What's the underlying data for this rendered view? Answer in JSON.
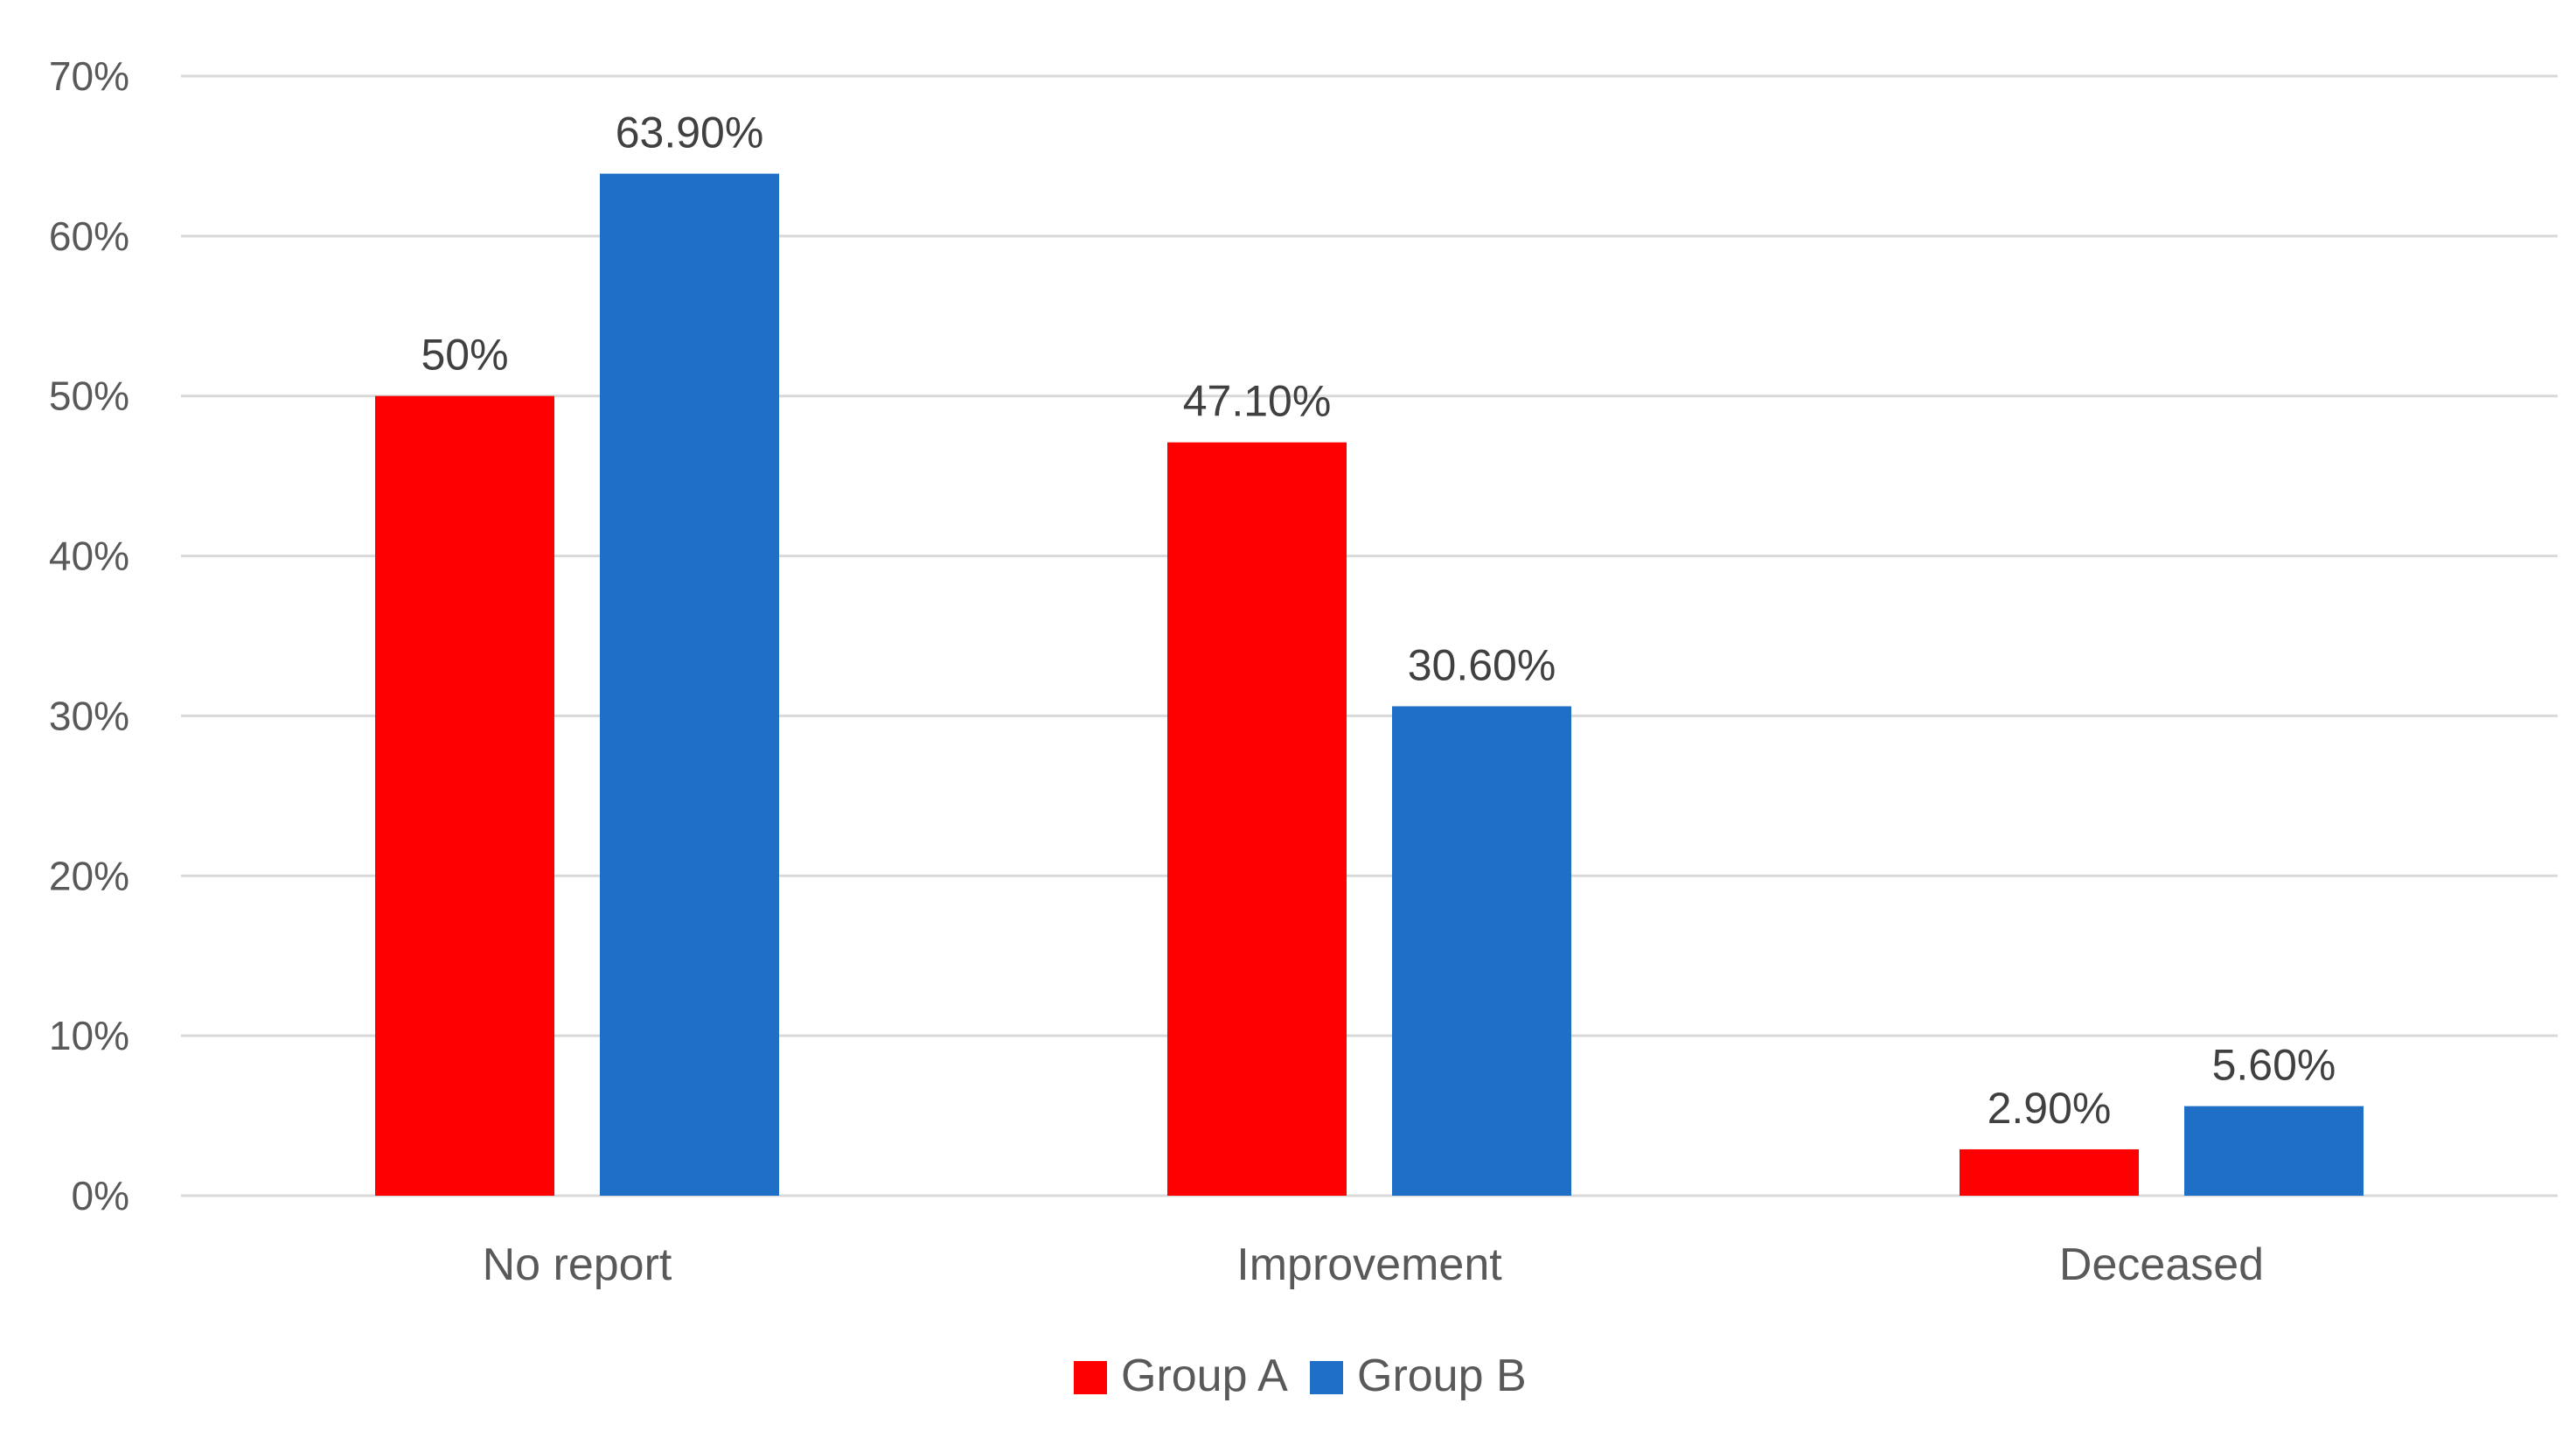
{
  "chart_data": {
    "type": "bar",
    "categories": [
      "No report",
      "Improvement",
      "Deceased"
    ],
    "series": [
      {
        "name": "Group A",
        "color": "#ff0000",
        "values": [
          50,
          47.1,
          2.9
        ],
        "labels": [
          "50%",
          "47.10%",
          "2.90%"
        ]
      },
      {
        "name": "Group B",
        "color": "#1f6fc7",
        "values": [
          63.9,
          30.6,
          5.6
        ],
        "labels": [
          "63.90%",
          "30.60%",
          "5.60%"
        ]
      }
    ],
    "y_ticks": [
      0,
      10,
      20,
      30,
      40,
      50,
      60,
      70
    ],
    "y_tick_labels": [
      "0%",
      "10%",
      "20%",
      "30%",
      "40%",
      "50%",
      "60%",
      "70%"
    ],
    "ylim": [
      0,
      70
    ],
    "grid": true,
    "legend_position": "bottom-center"
  }
}
